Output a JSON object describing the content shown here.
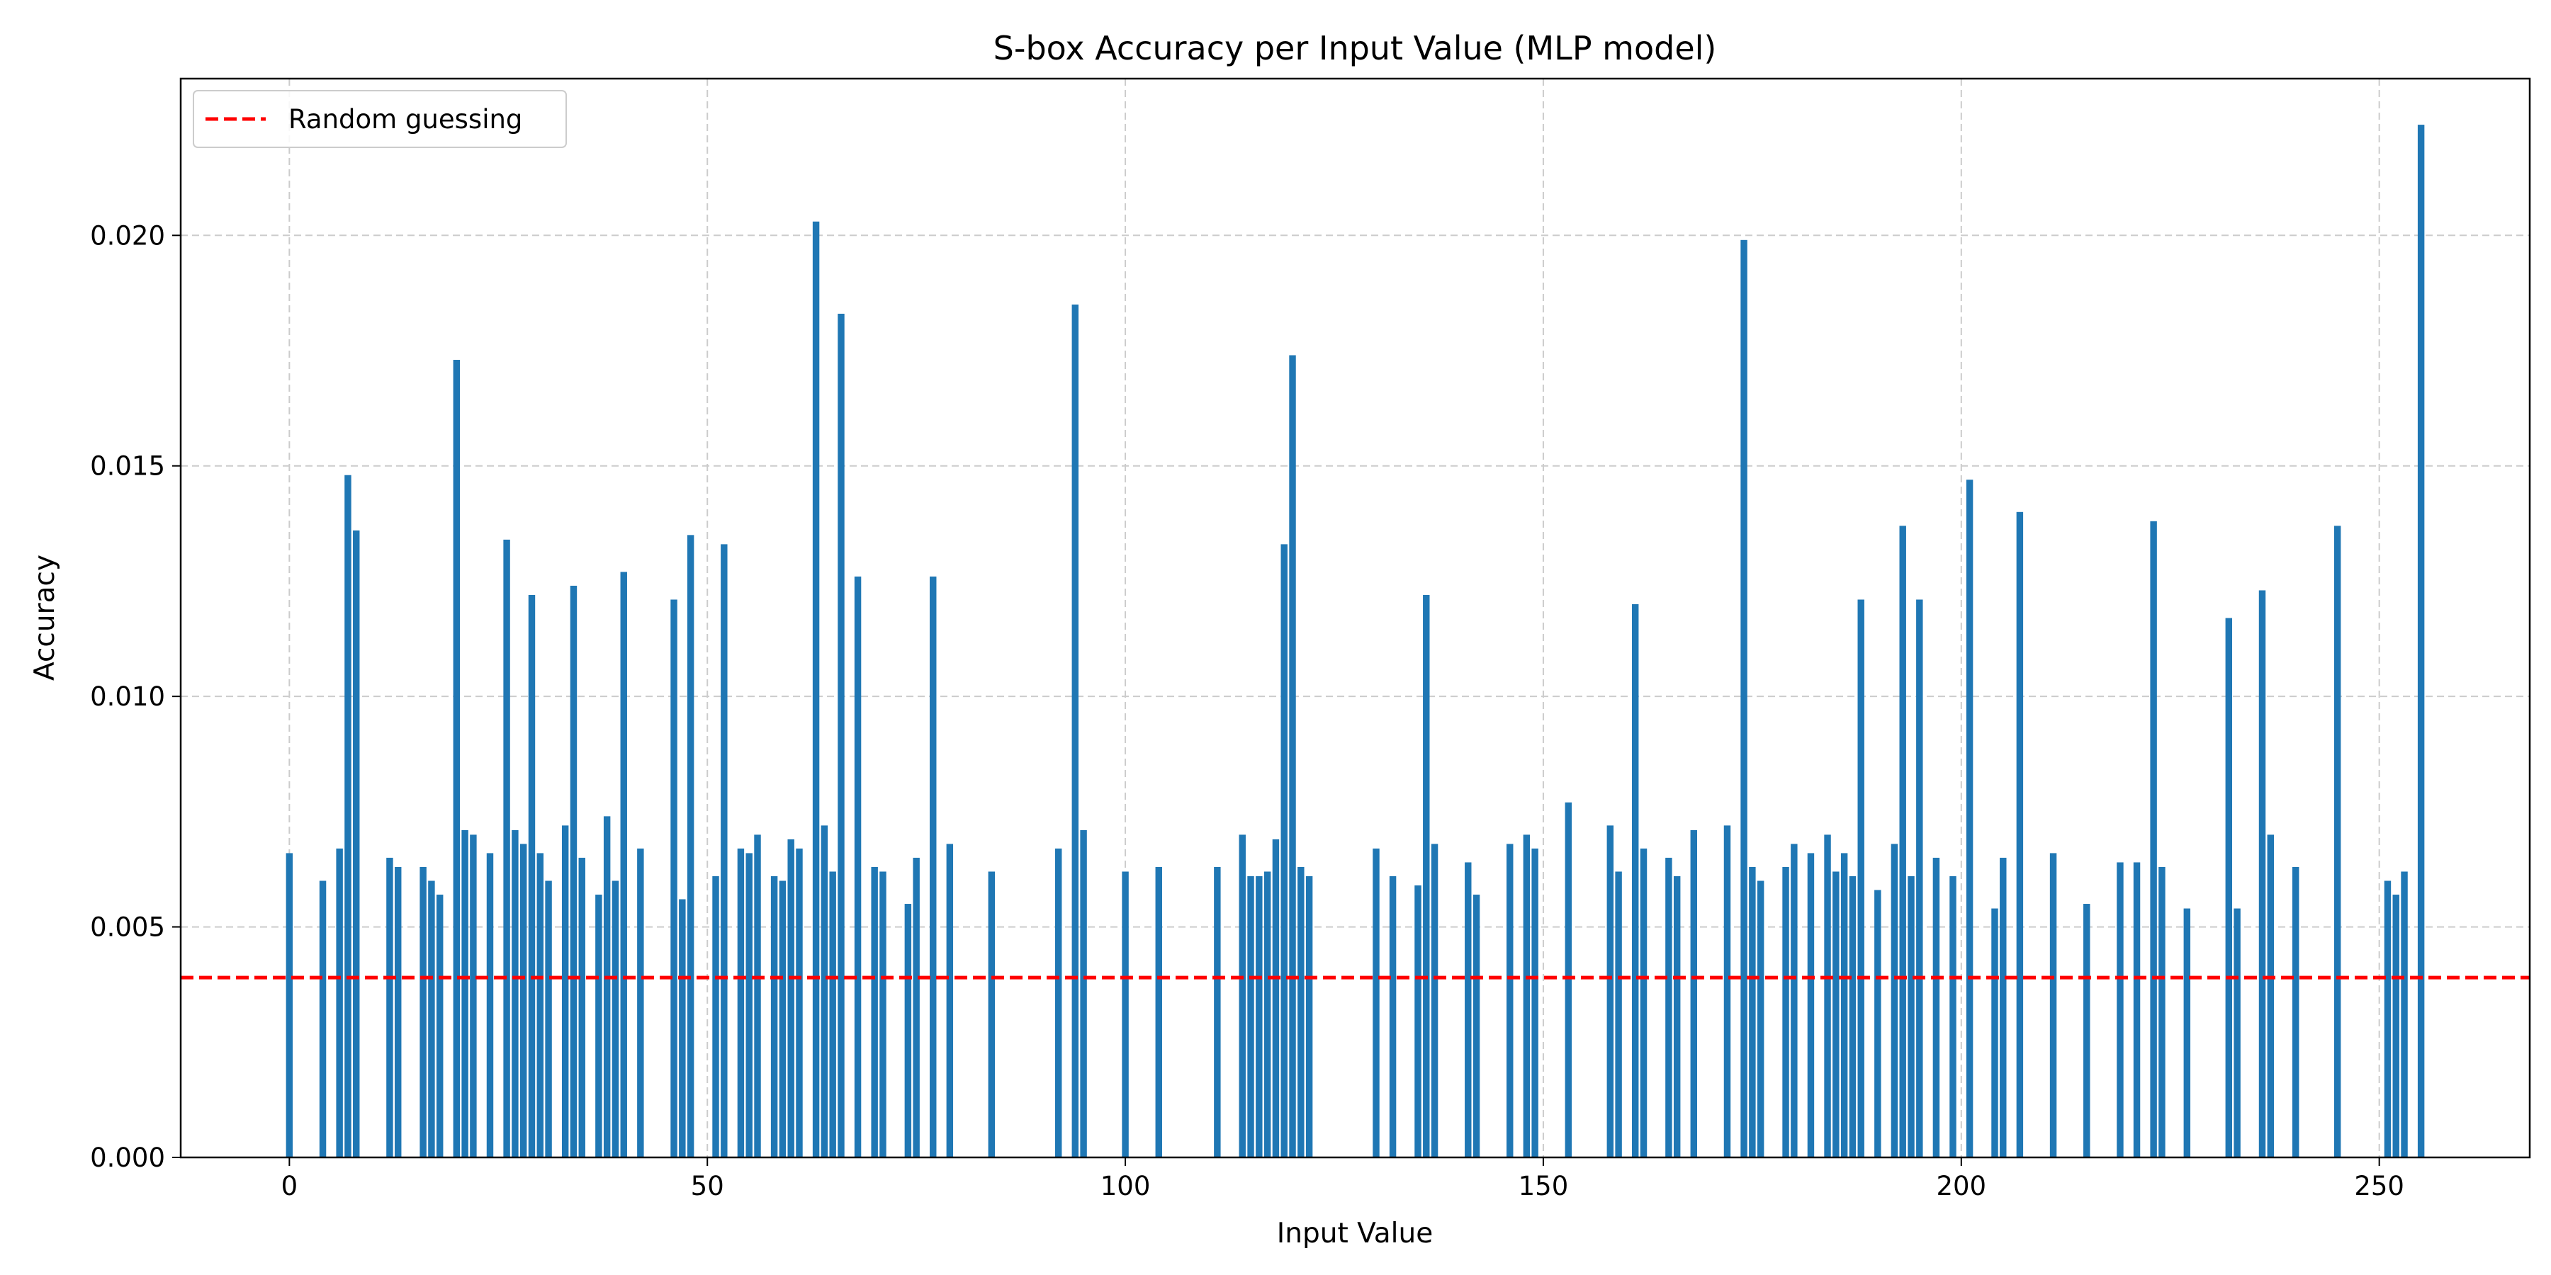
{
  "chart_data": {
    "type": "bar",
    "title": "S-box Accuracy per Input Value (MLP model)",
    "xlabel": "Input Value",
    "ylabel": "Accuracy",
    "xlim": [
      -13,
      268
    ],
    "ylim": [
      0,
      0.0234
    ],
    "xticks": [
      0,
      50,
      100,
      150,
      200,
      250
    ],
    "xtick_labels": [
      "0",
      "50",
      "100",
      "150",
      "200",
      "250"
    ],
    "yticks": [
      0,
      0.005,
      0.01,
      0.015,
      0.02
    ],
    "ytick_labels": [
      "0.000",
      "0.005",
      "0.010",
      "0.015",
      "0.020"
    ],
    "grid": true,
    "bar_color": "#1f77b4",
    "reference_line": {
      "label": "Random guessing",
      "value": 0.0039,
      "color": "#ff0000",
      "style": "dashed"
    },
    "legend": {
      "position": "top-left",
      "entries": [
        "Random guessing"
      ]
    },
    "x": [
      0,
      4,
      6,
      7,
      8,
      12,
      13,
      16,
      17,
      18,
      20,
      21,
      22,
      24,
      26,
      27,
      28,
      29,
      30,
      31,
      33,
      34,
      35,
      37,
      38,
      39,
      40,
      42,
      46,
      47,
      48,
      51,
      52,
      54,
      55,
      56,
      58,
      59,
      60,
      61,
      63,
      64,
      65,
      66,
      68,
      70,
      71,
      74,
      75,
      77,
      79,
      84,
      92,
      94,
      95,
      100,
      104,
      111,
      114,
      115,
      116,
      117,
      118,
      119,
      120,
      121,
      122,
      130,
      132,
      135,
      136,
      137,
      141,
      142,
      146,
      148,
      149,
      153,
      158,
      159,
      161,
      162,
      165,
      166,
      168,
      172,
      174,
      175,
      176,
      179,
      180,
      182,
      184,
      185,
      186,
      187,
      188,
      190,
      192,
      193,
      194,
      195,
      197,
      199,
      201,
      204,
      205,
      207,
      211,
      215,
      219,
      221,
      223,
      224,
      227,
      232,
      233,
      236,
      237,
      240,
      245,
      251,
      252,
      253,
      255
    ],
    "values": [
      0.0066,
      0.006,
      0.0067,
      0.0148,
      0.0136,
      0.0065,
      0.0063,
      0.0063,
      0.006,
      0.0057,
      0.0173,
      0.0071,
      0.007,
      0.0066,
      0.0134,
      0.0071,
      0.0068,
      0.0122,
      0.0066,
      0.006,
      0.0072,
      0.0124,
      0.0065,
      0.0057,
      0.0074,
      0.006,
      0.0127,
      0.0067,
      0.0121,
      0.0056,
      0.0135,
      0.0061,
      0.0133,
      0.0067,
      0.0066,
      0.007,
      0.0061,
      0.006,
      0.0069,
      0.0067,
      0.0203,
      0.0072,
      0.0062,
      0.0183,
      0.0126,
      0.0063,
      0.0062,
      0.0055,
      0.0065,
      0.0126,
      0.0068,
      0.0062,
      0.0067,
      0.0185,
      0.0071,
      0.0062,
      0.0063,
      0.0063,
      0.007,
      0.0061,
      0.0061,
      0.0062,
      0.0069,
      0.0133,
      0.0174,
      0.0063,
      0.0061,
      0.0067,
      0.0061,
      0.0059,
      0.0122,
      0.0068,
      0.0064,
      0.0057,
      0.0068,
      0.007,
      0.0067,
      0.0077,
      0.0072,
      0.0062,
      0.012,
      0.0067,
      0.0065,
      0.0061,
      0.0071,
      0.0072,
      0.0199,
      0.0063,
      0.006,
      0.0063,
      0.0068,
      0.0066,
      0.007,
      0.0062,
      0.0066,
      0.0061,
      0.0121,
      0.0058,
      0.0068,
      0.0137,
      0.0061,
      0.0121,
      0.0065,
      0.0061,
      0.0147,
      0.0054,
      0.0065,
      0.014,
      0.0066,
      0.0055,
      0.0064,
      0.0064,
      0.0138,
      0.0063,
      0.0054,
      0.0117,
      0.0054,
      0.0123,
      0.007,
      0.0063,
      0.0137,
      0.006,
      0.0057,
      0.0062,
      0.0224
    ]
  }
}
